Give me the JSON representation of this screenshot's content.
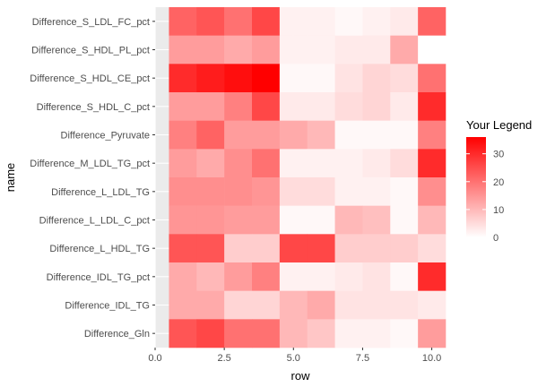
{
  "chart_data": {
    "type": "heatmap",
    "title": "",
    "xlabel": "row",
    "ylabel": "name",
    "xlim": [
      0,
      10.5
    ],
    "x_ticks": [
      0.0,
      2.5,
      5.0,
      7.5,
      10.0
    ],
    "x_tick_labels": [
      "0.0",
      "2.5",
      "5.0",
      "7.5",
      "10.0"
    ],
    "x": [
      1,
      2,
      3,
      4,
      5,
      6,
      7,
      8,
      9,
      10
    ],
    "y_categories": [
      "Difference_S_LDL_FC_pct",
      "Difference_S_HDL_PL_pct",
      "Difference_S_HDL_CE_pct",
      "Difference_S_HDL_C_pct",
      "Difference_Pyruvate",
      "Difference_M_LDL_TG_pct",
      "Difference_L_LDL_TG",
      "Difference_L_LDL_C_pct",
      "Difference_L_HDL_TG",
      "Difference_IDL_TG_pct",
      "Difference_IDL_TG",
      "Difference_Gln"
    ],
    "values": [
      [
        22,
        24,
        20,
        26,
        2,
        2,
        1,
        2,
        3,
        22
      ],
      [
        14,
        14,
        12,
        14,
        2,
        2,
        3,
        3,
        12,
        0
      ],
      [
        30,
        32,
        34,
        36,
        1,
        1,
        4,
        6,
        5,
        20
      ],
      [
        14,
        14,
        18,
        26,
        3,
        3,
        5,
        6,
        3,
        30
      ],
      [
        18,
        22,
        14,
        14,
        12,
        10,
        1,
        1,
        1,
        18
      ],
      [
        14,
        12,
        16,
        20,
        2,
        2,
        2,
        3,
        5,
        30
      ],
      [
        16,
        16,
        16,
        15,
        5,
        5,
        2,
        2,
        1,
        16
      ],
      [
        15,
        15,
        14,
        14,
        1,
        1,
        10,
        9,
        1,
        10
      ],
      [
        24,
        24,
        7,
        7,
        26,
        26,
        7,
        7,
        7,
        5
      ],
      [
        12,
        10,
        14,
        18,
        2,
        2,
        3,
        4,
        1,
        30
      ],
      [
        12,
        12,
        6,
        6,
        10,
        12,
        4,
        4,
        4,
        3
      ],
      [
        24,
        26,
        20,
        20,
        10,
        8,
        2,
        2,
        1,
        14
      ]
    ],
    "color_scale": {
      "low": "#ffffff",
      "high": "#ff0000",
      "min": 0,
      "max": 36
    },
    "legend": {
      "title": "Your Legend",
      "ticks": [
        0,
        10,
        20,
        30
      ],
      "tick_labels": [
        "0",
        "10",
        "20",
        "30"
      ],
      "position": "right"
    },
    "panel_background": "#ebebeb",
    "grid": true
  }
}
